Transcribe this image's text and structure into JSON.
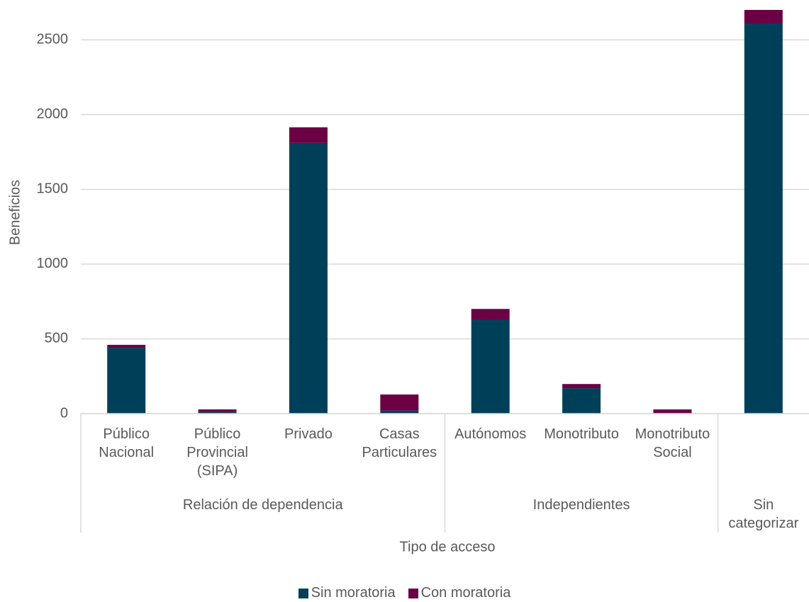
{
  "chart_data": {
    "type": "stacked-bar",
    "x_label": "Tipo de acceso",
    "y_label": "Beneficios",
    "groups": [
      {
        "name": "Relación de dependencia",
        "categories": [
          "Público Nacional",
          "Público Provincial (SIPA)",
          "Privado",
          "Casas Particulares"
        ]
      },
      {
        "name": "Independientes",
        "categories": [
          "Autónomos",
          "Monotributo",
          "Monotributo Social"
        ]
      },
      {
        "name": "Sin categorizar",
        "categories": [
          null
        ]
      }
    ],
    "series": [
      {
        "name": "Sin moratoria",
        "color": "#003f58",
        "values": [
          440,
          10,
          1810,
          20,
          630,
          170,
          3,
          2610
        ]
      },
      {
        "name": "Con moratoria",
        "color": "#6b0045",
        "values": [
          20,
          18,
          105,
          108,
          70,
          28,
          25,
          90
        ]
      }
    ],
    "ylim": [
      0,
      2700
    ],
    "yticks": [
      0,
      500,
      1000,
      1500,
      2000,
      2500
    ],
    "grid": true,
    "legend": "bottom"
  }
}
